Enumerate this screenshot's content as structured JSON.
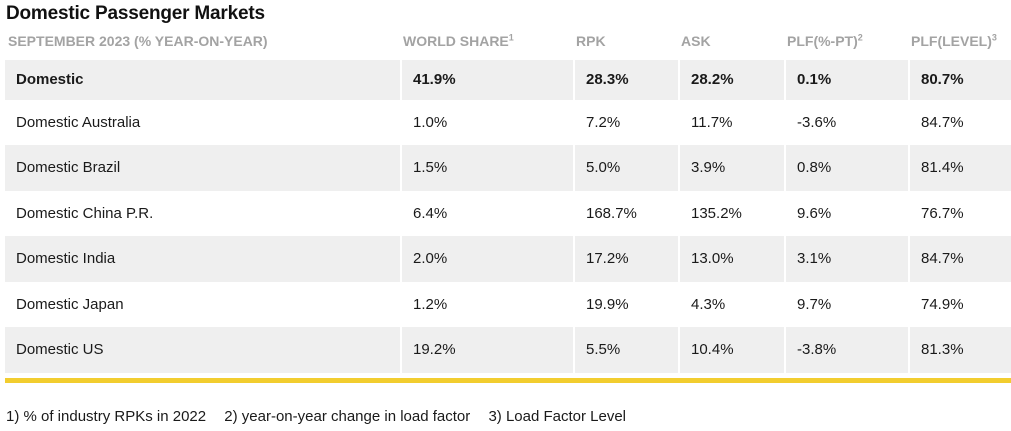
{
  "title": "Domestic Passenger Markets",
  "columns": [
    {
      "label": "SEPTEMBER 2023 (% YEAR-ON-YEAR)",
      "sup": ""
    },
    {
      "label": "WORLD SHARE",
      "sup": "1"
    },
    {
      "label": "RPK",
      "sup": ""
    },
    {
      "label": "ASK",
      "sup": ""
    },
    {
      "label": "PLF(%-PT)",
      "sup": "2"
    },
    {
      "label": "PLF(LEVEL)",
      "sup": "3"
    }
  ],
  "rows": [
    {
      "market": "Domestic",
      "world_share": "41.9%",
      "rpk": "28.3%",
      "ask": "28.2%",
      "plf_pt": "0.1%",
      "plf_level": "80.7%"
    },
    {
      "market": "Domestic Australia",
      "world_share": "1.0%",
      "rpk": "7.2%",
      "ask": "11.7%",
      "plf_pt": "-3.6%",
      "plf_level": "84.7%"
    },
    {
      "market": "Domestic Brazil",
      "world_share": "1.5%",
      "rpk": "5.0%",
      "ask": "3.9%",
      "plf_pt": "0.8%",
      "plf_level": "81.4%"
    },
    {
      "market": "Domestic China P.R.",
      "world_share": "6.4%",
      "rpk": "168.7%",
      "ask": "135.2%",
      "plf_pt": "9.6%",
      "plf_level": "76.7%"
    },
    {
      "market": "Domestic India",
      "world_share": "2.0%",
      "rpk": "17.2%",
      "ask": "13.0%",
      "plf_pt": "3.1%",
      "plf_level": "84.7%"
    },
    {
      "market": "Domestic Japan",
      "world_share": "1.2%",
      "rpk": "19.9%",
      "ask": "4.3%",
      "plf_pt": "9.7%",
      "plf_level": "74.9%"
    },
    {
      "market": "Domestic US",
      "world_share": "19.2%",
      "rpk": "5.5%",
      "ask": "10.4%",
      "plf_pt": "-3.8%",
      "plf_level": "81.3%"
    }
  ],
  "footnotes": [
    "1) % of industry RPKs in 2022",
    "2) year-on-year change in load factor",
    "3) Load Factor Level"
  ],
  "colors": {
    "accent_rule": "#f2cd2f",
    "header_text": "#a3a3a3",
    "stripe": "#efefef"
  }
}
